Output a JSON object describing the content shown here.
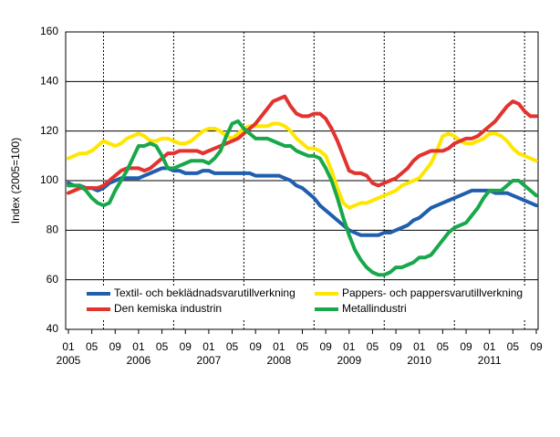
{
  "chart_data": {
    "type": "line",
    "y_label": "Index (2005=100)",
    "x": [
      "2005-01",
      "2005-02",
      "2005-03",
      "2005-04",
      "2005-05",
      "2005-06",
      "2005-07",
      "2005-08",
      "2005-09",
      "2005-10",
      "2005-11",
      "2005-12",
      "2006-01",
      "2006-02",
      "2006-03",
      "2006-04",
      "2006-05",
      "2006-06",
      "2006-07",
      "2006-08",
      "2006-09",
      "2006-10",
      "2006-11",
      "2006-12",
      "2007-01",
      "2007-02",
      "2007-03",
      "2007-04",
      "2007-05",
      "2007-06",
      "2007-07",
      "2007-08",
      "2007-09",
      "2007-10",
      "2007-11",
      "2007-12",
      "2008-01",
      "2008-02",
      "2008-03",
      "2008-04",
      "2008-05",
      "2008-06",
      "2008-07",
      "2008-08",
      "2008-09",
      "2008-10",
      "2008-11",
      "2008-12",
      "2009-01",
      "2009-02",
      "2009-03",
      "2009-04",
      "2009-05",
      "2009-06",
      "2009-07",
      "2009-08",
      "2009-09",
      "2009-10",
      "2009-11",
      "2009-12",
      "2010-01",
      "2010-02",
      "2010-03",
      "2010-04",
      "2010-05",
      "2010-06",
      "2010-07",
      "2010-08",
      "2010-09",
      "2010-10",
      "2010-11",
      "2010-12",
      "2011-01",
      "2011-02",
      "2011-03",
      "2011-04",
      "2011-05",
      "2011-06",
      "2011-07",
      "2011-08",
      "2011-09"
    ],
    "series": [
      {
        "name": "Textil- och beklädnadsvarutillverkning",
        "color": "#1f5fae",
        "values": [
          99,
          98,
          98,
          97,
          97,
          96,
          97,
          99,
          100,
          101,
          101,
          101,
          101,
          102,
          103,
          104,
          105,
          105,
          104,
          104,
          103,
          103,
          103,
          104,
          104,
          103,
          103,
          103,
          103,
          103,
          103,
          103,
          102,
          102,
          102,
          102,
          102,
          101,
          100,
          98,
          97,
          95,
          93,
          90,
          88,
          86,
          84,
          82,
          80,
          79,
          78,
          78,
          78,
          78,
          79,
          79,
          80,
          81,
          82,
          84,
          85,
          87,
          89,
          90,
          91,
          92,
          93,
          94,
          95,
          96,
          96,
          96,
          96,
          95,
          95,
          95,
          94,
          93,
          92,
          91,
          90
        ]
      },
      {
        "name": "Pappers- och pappersvarutillverkning",
        "color": "#ffe600",
        "values": [
          109,
          110,
          111,
          111,
          112,
          114,
          116,
          115,
          114,
          115,
          117,
          118,
          119,
          118,
          116,
          116,
          117,
          117,
          116,
          115,
          115,
          116,
          118,
          120,
          121,
          121,
          120,
          118,
          117,
          119,
          121,
          122,
          122,
          122,
          122,
          123,
          123,
          122,
          120,
          117,
          115,
          113,
          113,
          112,
          110,
          104,
          97,
          91,
          89,
          90,
          91,
          91,
          92,
          93,
          94,
          95,
          96,
          98,
          99,
          100,
          101,
          104,
          107,
          112,
          118,
          119,
          118,
          116,
          115,
          115,
          116,
          117,
          119,
          119,
          118,
          116,
          113,
          111,
          110,
          109,
          108
        ]
      },
      {
        "name": "Den kemiska industrin",
        "color": "#e2332e",
        "values": [
          95,
          96,
          97,
          97,
          97,
          97,
          98,
          100,
          102,
          104,
          105,
          105,
          105,
          104,
          105,
          107,
          109,
          111,
          111,
          112,
          112,
          112,
          112,
          111,
          112,
          113,
          114,
          115,
          116,
          117,
          119,
          121,
          123,
          126,
          129,
          132,
          133,
          134,
          130,
          127,
          126,
          126,
          127,
          127,
          125,
          121,
          116,
          110,
          104,
          103,
          103,
          102,
          99,
          98,
          99,
          100,
          101,
          103,
          105,
          108,
          110,
          111,
          112,
          112,
          112,
          113,
          115,
          116,
          117,
          117,
          118,
          120,
          122,
          124,
          127,
          130,
          132,
          131,
          128,
          126,
          126
        ]
      },
      {
        "name": "Metallindustri",
        "color": "#18a84b",
        "values": [
          98,
          98,
          98,
          96,
          93,
          91,
          90,
          91,
          96,
          100,
          104,
          109,
          114,
          114,
          115,
          114,
          110,
          105,
          105,
          106,
          107,
          108,
          108,
          108,
          107,
          109,
          112,
          118,
          123,
          124,
          121,
          119,
          117,
          117,
          117,
          116,
          115,
          114,
          114,
          112,
          111,
          110,
          110,
          109,
          105,
          100,
          93,
          85,
          78,
          72,
          68,
          65,
          63,
          62,
          62,
          63,
          65,
          65,
          66,
          67,
          69,
          69,
          70,
          73,
          76,
          79,
          81,
          82,
          83,
          86,
          89,
          93,
          96,
          96,
          96,
          98,
          100,
          100,
          98,
          96,
          94
        ]
      }
    ],
    "ylim": [
      40,
      160
    ],
    "yticks": [
      40,
      60,
      80,
      100,
      120,
      140,
      160
    ],
    "xticks": [
      {
        "value": "2005-01",
        "label": "01"
      },
      {
        "value": "2005-05",
        "label": "05"
      },
      {
        "value": "2005-09",
        "label": "09"
      },
      {
        "value": "2006-01",
        "label": "01"
      },
      {
        "value": "2006-05",
        "label": "05"
      },
      {
        "value": "2006-09",
        "label": "09"
      },
      {
        "value": "2007-01",
        "label": "01"
      },
      {
        "value": "2007-05",
        "label": "05"
      },
      {
        "value": "2007-09",
        "label": "09"
      },
      {
        "value": "2008-01",
        "label": "01"
      },
      {
        "value": "2008-05",
        "label": "05"
      },
      {
        "value": "2008-09",
        "label": "09"
      },
      {
        "value": "2009-01",
        "label": "01"
      },
      {
        "value": "2009-05",
        "label": "05"
      },
      {
        "value": "2009-09",
        "label": "09"
      },
      {
        "value": "2010-01",
        "label": "01"
      },
      {
        "value": "2010-05",
        "label": "05"
      },
      {
        "value": "2010-09",
        "label": "09"
      },
      {
        "value": "2011-01",
        "label": "01"
      },
      {
        "value": "2011-05",
        "label": "05"
      },
      {
        "value": "2011-09",
        "label": "09"
      }
    ],
    "year_labels": [
      {
        "value": "2005-01",
        "label": "2005"
      },
      {
        "value": "2006-01",
        "label": "2006"
      },
      {
        "value": "2007-01",
        "label": "2007"
      },
      {
        "value": "2008-01",
        "label": "2008"
      },
      {
        "value": "2009-01",
        "label": "2009"
      },
      {
        "value": "2010-01",
        "label": "2010"
      },
      {
        "value": "2011-01",
        "label": "2011"
      }
    ],
    "grid": true
  }
}
